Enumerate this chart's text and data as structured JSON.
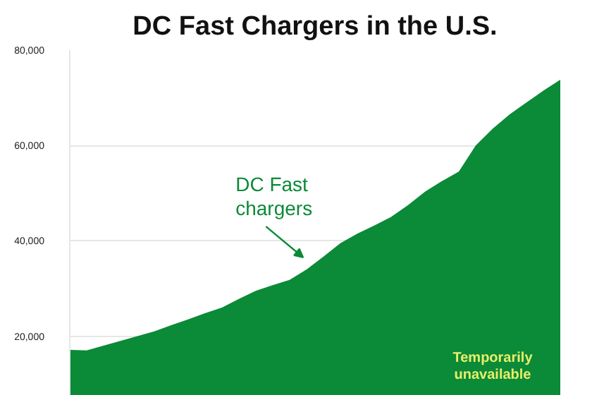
{
  "chart_data": {
    "type": "area",
    "title": "DC Fast Chargers in the U.S.",
    "categories": [
      null,
      null,
      null,
      null,
      null,
      null,
      null,
      null,
      null,
      null,
      null,
      null,
      null,
      null,
      null,
      null,
      null,
      null,
      null,
      null,
      null,
      null,
      null,
      null,
      null,
      null,
      null,
      null,
      null,
      null
    ],
    "series": [
      {
        "color": "#0b8a37",
        "values": [
          17100,
          17000,
          18000,
          19000,
          20000,
          21000,
          22300,
          23500,
          24800,
          26000,
          27800,
          29500,
          30700,
          31800,
          34000,
          36700,
          39500,
          41500,
          43200,
          45000,
          47500,
          50300,
          52500,
          54500,
          60000,
          63500,
          66500,
          69000,
          71500,
          73800
        ]
      }
    ],
    "ylim": [
      7500,
      80000
    ],
    "yticks": [
      {
        "value": 20000,
        "label": "20,000"
      },
      {
        "value": 40000,
        "label": "40,000"
      },
      {
        "value": 60000,
        "label": "60,000"
      },
      {
        "value": 80000,
        "label": "80,000"
      }
    ],
    "grid": "y",
    "annotations": [
      "DC Fast chargers",
      "Temporarily unavailable"
    ]
  }
}
